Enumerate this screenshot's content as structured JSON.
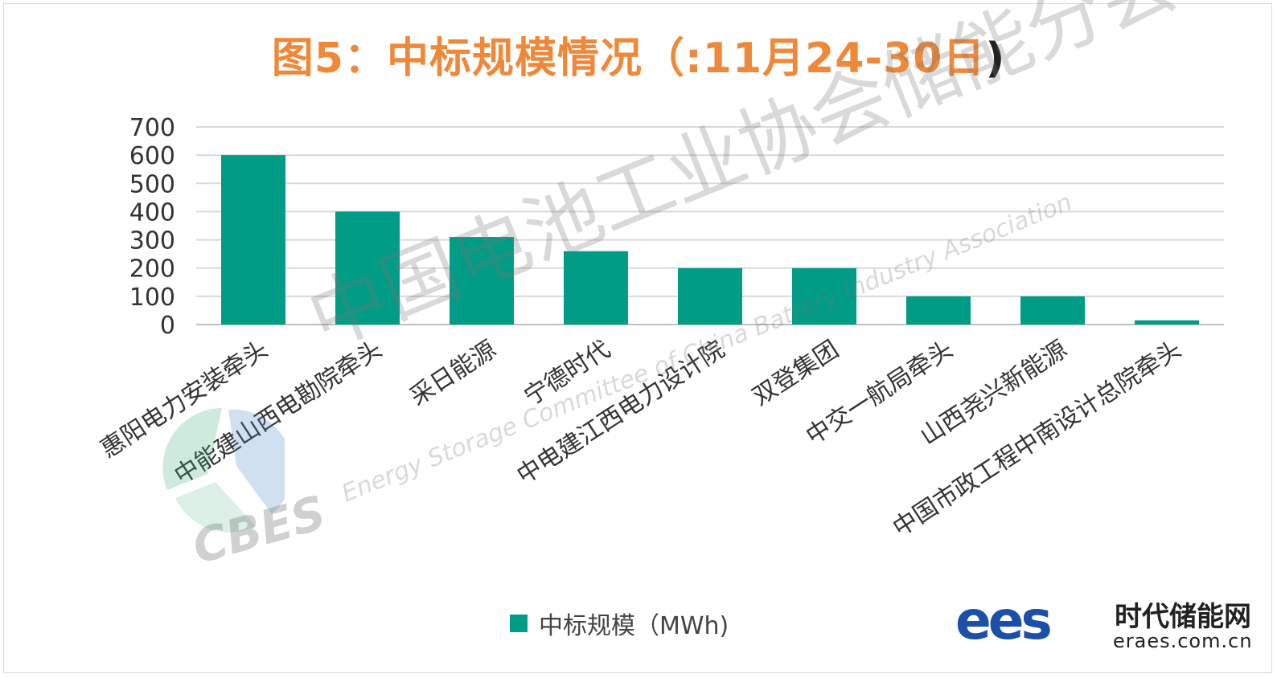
{
  "chart_data": {
    "type": "bar",
    "title": "图5：中标规模情况（:11月24-30日",
    "title_close": ")",
    "categories": [
      "惠阳电力安装牵头",
      "中能建山西电勘院牵头",
      "采日能源",
      "宁德时代",
      "中电建江西电力设计院",
      "双登集团",
      "中交一航局牵头",
      "山西尧兴新能源",
      "中国市政工程中南设计总院牵头"
    ],
    "series": [
      {
        "name": "中标规模（MWh)",
        "values": [
          600,
          400,
          310,
          260,
          200,
          200,
          100,
          100,
          15
        ]
      }
    ],
    "ylim": [
      0,
      700
    ],
    "yticks": [
      "0",
      "100",
      "200",
      "300",
      "400",
      "500",
      "600",
      "700"
    ],
    "grid": true,
    "legend": "bottom",
    "colors": {
      "bar": "#009c85",
      "title": "#f0883a",
      "grid": "#d9d9d9"
    }
  },
  "watermark": {
    "cn": "中国电池工业协会储能分会",
    "en": "Energy Storage Committee of China Battery Industry Association",
    "logo_text": "CBES"
  },
  "brand": {
    "logo_text": "ees",
    "name": "时代储能网",
    "url": "eraes.com.cn"
  }
}
